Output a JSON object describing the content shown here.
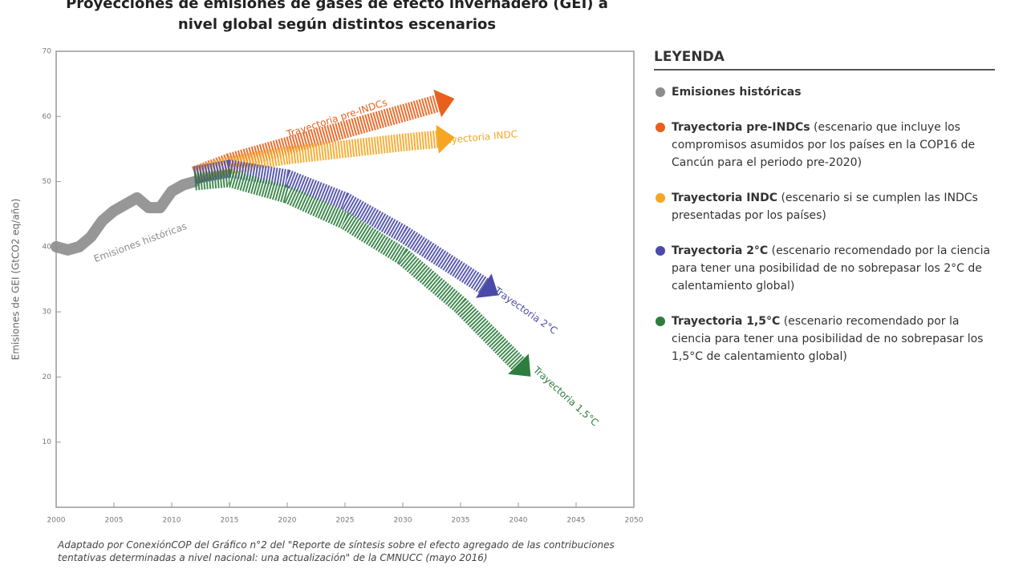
{
  "chart_data": {
    "type": "line",
    "title": "Proyecciones de emisiones de gases de efecto invernadero (GEI) a nivel global según distintos escenarios",
    "y_label": "Emisiones de GEI (GtCO2 eq/año)",
    "xlim": [
      2000,
      2050
    ],
    "xticks": [
      2000,
      2005,
      2010,
      2015,
      2020,
      2025,
      2030,
      2035,
      2040,
      2045,
      2050
    ],
    "ylim": [
      0,
      70
    ],
    "yticks": [
      10,
      20,
      30,
      40,
      50,
      60,
      70
    ],
    "legend_title": "LEYENDA",
    "series": [
      {
        "name": "Emisiones históricas",
        "color": "#8c8c8c",
        "description": "",
        "x": [
          2000,
          2001,
          2002,
          2003,
          2004,
          2005,
          2006,
          2007,
          2008,
          2009,
          2010,
          2011,
          2012
        ],
        "values": [
          40,
          39.5,
          40,
          41.5,
          44,
          45.5,
          46.5,
          47.5,
          46,
          46,
          48.5,
          49.5,
          50
        ]
      },
      {
        "name": "Trayectoria pre-INDCs",
        "color": "#e8601c",
        "description": "(escenario que incluye los compromisos asumidos por los países en la COP16 de Cancún para el periodo pre-2020)",
        "x": [
          2012,
          2015,
          2020,
          2025,
          2030,
          2033
        ],
        "values": [
          51,
          53,
          55.5,
          58,
          60.5,
          62
        ]
      },
      {
        "name": "Trayectoria INDC",
        "color": "#f5a623",
        "description": "(escenario si se cumplen las INDCs presentadas por los países)",
        "x": [
          2012,
          2015,
          2020,
          2025,
          2030,
          2033
        ],
        "values": [
          51,
          52.5,
          54,
          55,
          56,
          56.5
        ]
      },
      {
        "name": "Trayectoria 2°C",
        "color": "#4a4aa8",
        "description": "(escenario recomendado por la ciencia para tener una posibilidad de no sobrepasar los 2°C de calentamiento global)",
        "x": [
          2012,
          2015,
          2020,
          2025,
          2030,
          2037
        ],
        "values": [
          51,
          52,
          50.5,
          47,
          42,
          34
        ]
      },
      {
        "name": "Trayectoria 1,5°C",
        "color": "#2e7d3e",
        "description": "(escenario recomendado por la ciencia para tener una posibilidad de no sobrepasar los 1,5°C de calentamiento global)",
        "x": [
          2012,
          2015,
          2020,
          2025,
          2030,
          2035,
          2040
        ],
        "values": [
          50,
          50.5,
          48,
          44,
          38.5,
          31,
          22
        ]
      }
    ],
    "source": "Adaptado por ConexiónCOP del Gráfico n°2 del \"Reporte de síntesis sobre el efecto agregado de las contribuciones tentativas determinadas a nivel nacional: una actualización\" de la CMNUCC (mayo 2016)"
  }
}
